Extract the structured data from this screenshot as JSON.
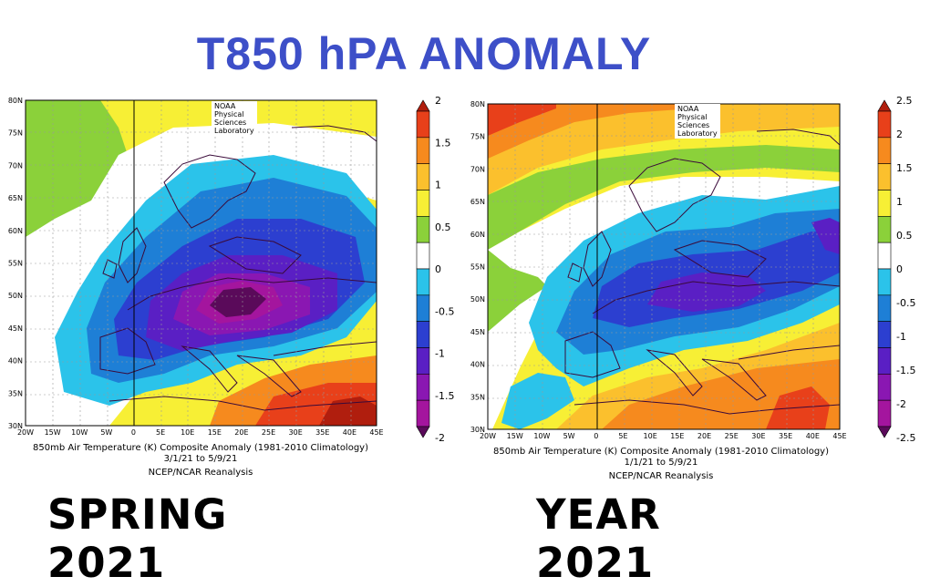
{
  "title": "T850 hPA ANOMALY",
  "panels": [
    {
      "id": "spring",
      "credit": "NOAA Physical Sciences Laboratory",
      "lat_labels": [
        "80N",
        "75N",
        "70N",
        "65N",
        "60N",
        "55N",
        "50N",
        "45N",
        "40N",
        "35N",
        "30N"
      ],
      "lon_labels": [
        "20W",
        "15W",
        "10W",
        "5W",
        "0",
        "5E",
        "10E",
        "15E",
        "20E",
        "25E",
        "30E",
        "35E",
        "40E",
        "45E"
      ],
      "caption_line1": "850mb Air Temperature (K) Composite Anomaly (1981-2010 Climatology)",
      "caption_line2": "3/1/21    to 5/9/21",
      "caption_line3": "NCEP/NCAR Reanalysis",
      "season_label": "SPRING 2021",
      "colorbar_labels": [
        "2",
        "1.5",
        "1",
        "0.5",
        "0",
        "-0.5",
        "-1",
        "-1.5",
        "-2"
      ],
      "colorbar_colors": [
        "#b01e0e",
        "#e8401a",
        "#f68a1e",
        "#fbc02d",
        "#f7ef35",
        "#8bd13a",
        "#ffffff",
        "#2bc3ea",
        "#1e7fd6",
        "#2c3fd0",
        "#5a1fc4",
        "#8a17b2",
        "#a4159e",
        "#5a0a5a"
      ]
    },
    {
      "id": "year",
      "credit": "NOAA Physical Sciences Laboratory",
      "lat_labels": [
        "80N",
        "75N",
        "70N",
        "65N",
        "60N",
        "55N",
        "50N",
        "45N",
        "40N",
        "35N",
        "30N"
      ],
      "lon_labels": [
        "20W",
        "15W",
        "10W",
        "5W",
        "0",
        "5E",
        "10E",
        "15E",
        "20E",
        "25E",
        "30E",
        "35E",
        "40E",
        "45E"
      ],
      "caption_line1": "850mb Air Temperature (K) Composite Anomaly (1981-2010 Climatology)",
      "caption_line2": "1/1/21    to 5/9/21",
      "caption_line3": "NCEP/NCAR Reanalysis",
      "season_label": "YEAR 2021",
      "colorbar_labels": [
        "2.5",
        "2",
        "1.5",
        "1",
        "0.5",
        "0",
        "-0.5",
        "-1",
        "-1.5",
        "-2",
        "-2.5"
      ],
      "colorbar_colors": [
        "#b01e0e",
        "#e8401a",
        "#f68a1e",
        "#fbc02d",
        "#f7ef35",
        "#8bd13a",
        "#ffffff",
        "#2bc3ea",
        "#1e7fd6",
        "#2c3fd0",
        "#5a1fc4",
        "#8a17b2",
        "#a4159e",
        "#5a0a5a"
      ]
    }
  ]
}
